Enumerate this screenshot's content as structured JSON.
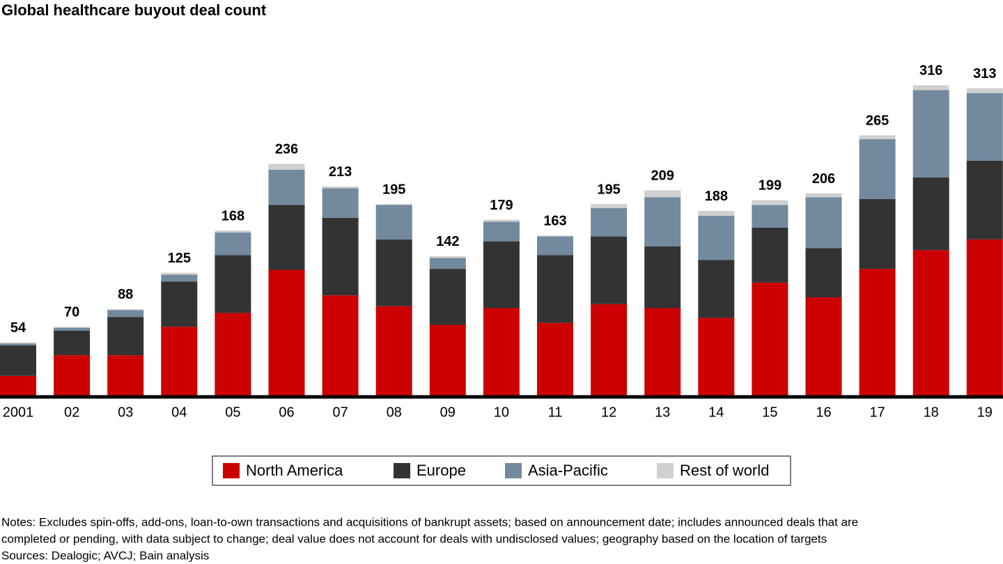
{
  "chart_data": {
    "type": "stacked-bar",
    "title": "Global healthcare buyout deal count",
    "categories": [
      "2001",
      "02",
      "03",
      "04",
      "05",
      "06",
      "07",
      "08",
      "09",
      "10",
      "11",
      "12",
      "13",
      "14",
      "15",
      "16",
      "17",
      "18",
      "19"
    ],
    "series": [
      {
        "name": "North America",
        "color": "#cc0000",
        "values": [
          20,
          41,
          41,
          70,
          84,
          128,
          102,
          91,
          72,
          89,
          74,
          93,
          89,
          79,
          115,
          100,
          129,
          148,
          159
        ]
      },
      {
        "name": "Europe",
        "color": "#333333",
        "values": [
          31,
          25,
          39,
          46,
          59,
          66,
          79,
          68,
          57,
          68,
          69,
          69,
          63,
          59,
          56,
          50,
          71,
          74,
          80
        ]
      },
      {
        "name": "Asia-Pacific",
        "color": "#72899e",
        "values": [
          2,
          3,
          7,
          7,
          23,
          36,
          30,
          35,
          11,
          20,
          19,
          29,
          50,
          45,
          23,
          52,
          61,
          89,
          69
        ]
      },
      {
        "name": "Rest of world",
        "color": "#d0d0d0",
        "values": [
          1,
          1,
          1,
          2,
          2,
          6,
          2,
          1,
          2,
          2,
          1,
          4,
          7,
          5,
          5,
          4,
          4,
          5,
          5
        ]
      }
    ],
    "totals": [
      54,
      70,
      88,
      125,
      168,
      236,
      213,
      195,
      142,
      179,
      163,
      195,
      209,
      188,
      199,
      206,
      265,
      316,
      313
    ],
    "notes": [
      "Notes: Excludes spin-offs, add-ons, loan-to-own transactions and acquisitions of bankrupt assets; based on announcement date; includes announced deals that are",
      "completed or pending, with data subject to change; deal value does not account for deals with undisclosed values; geography based on the location of targets",
      "Sources: Dealogic; AVCJ; Bain analysis"
    ]
  }
}
